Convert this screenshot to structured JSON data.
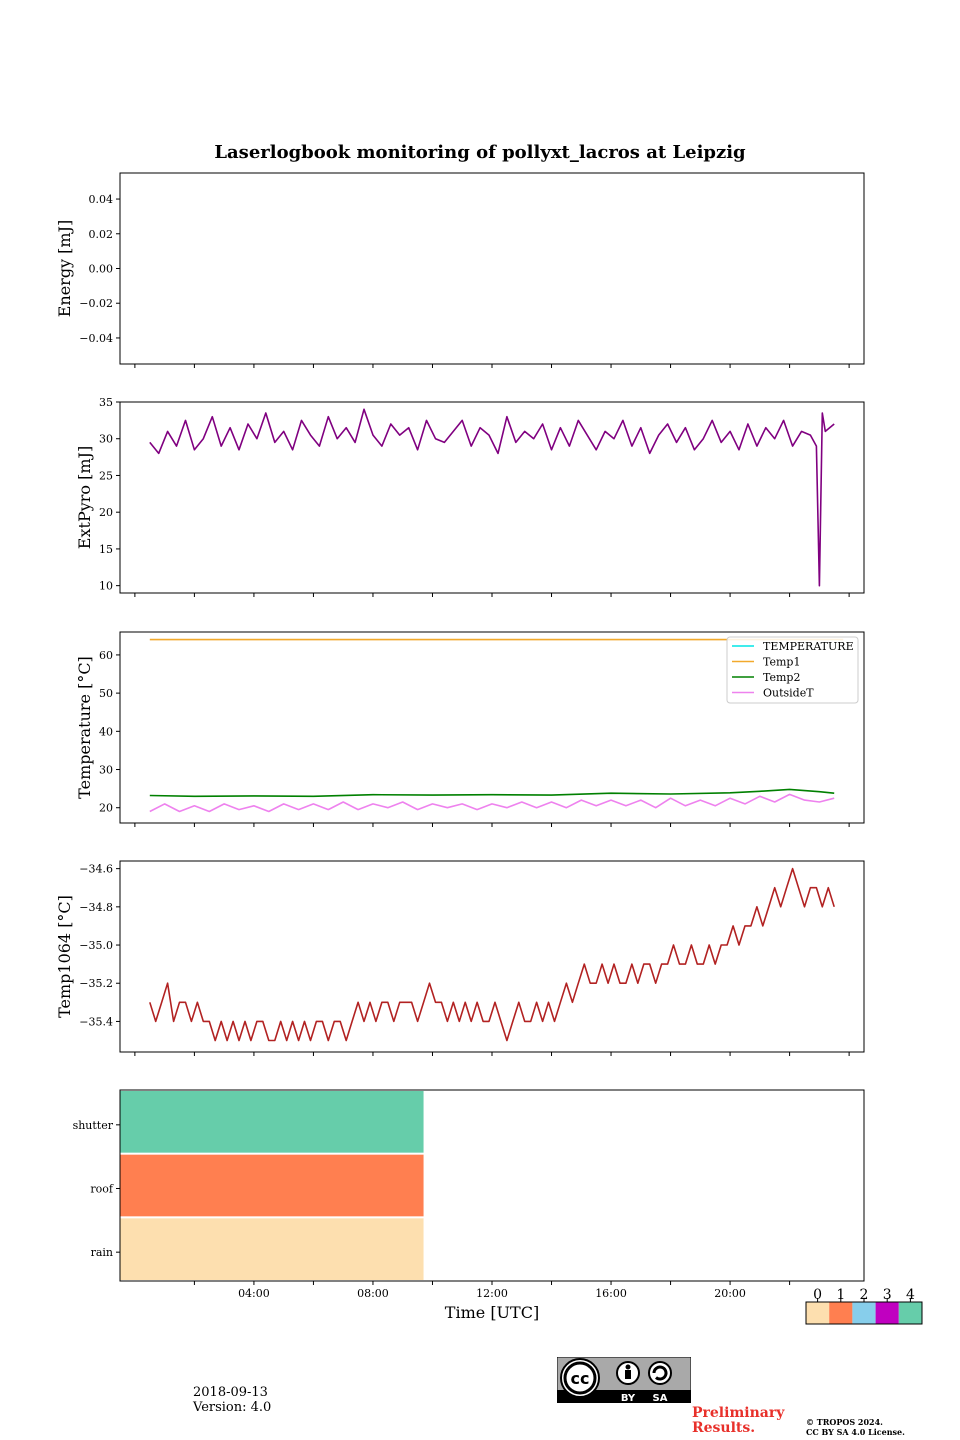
{
  "title": "Laserlogbook monitoring of pollyxt_lacros at Leipzig",
  "date": "2018-09-13",
  "version": "Version: 4.0",
  "preliminary": "Preliminary Results.",
  "copyright_line1": "© TROPOS 2024.",
  "copyright_line2": "CC BY SA 4.0 License.",
  "license_badge": {
    "cc": "cc",
    "by": "BY",
    "sa": "SA"
  },
  "x_axis": {
    "label": "Time [UTC]",
    "range_hours": [
      -0.5,
      24.5
    ],
    "ticks": [
      4,
      8,
      12,
      16,
      20
    ],
    "tick_labels": [
      "04:00",
      "08:00",
      "12:00",
      "16:00",
      "20:00"
    ],
    "minor_ticks": [
      2,
      6,
      10,
      14,
      18,
      22
    ]
  },
  "chart_data": [
    {
      "type": "line",
      "ylabel": "Energy [mJ]",
      "ylim": [
        -0.055,
        0.055
      ],
      "yticks": [
        0.04,
        0.02,
        0.0,
        -0.02,
        -0.04
      ],
      "ytick_labels": [
        "0.04",
        "0.02",
        "0.00",
        "−0.02",
        "−0.04"
      ],
      "series": []
    },
    {
      "type": "line",
      "ylabel": "ExtPyro [mJ]",
      "ylim": [
        9,
        35
      ],
      "yticks": [
        35,
        30,
        25,
        20,
        15,
        10
      ],
      "ytick_labels": [
        "35",
        "30",
        "25",
        "20",
        "15",
        "10"
      ],
      "series": [
        {
          "color": "#800080",
          "x": [
            0.5,
            0.8,
            1.1,
            1.4,
            1.7,
            2.0,
            2.3,
            2.6,
            2.9,
            3.2,
            3.5,
            3.8,
            4.1,
            4.4,
            4.7,
            5.0,
            5.3,
            5.6,
            5.9,
            6.2,
            6.5,
            6.8,
            7.1,
            7.4,
            7.7,
            8.0,
            8.3,
            8.6,
            8.9,
            9.2,
            9.5,
            9.8,
            10.1,
            10.4,
            10.7,
            11.0,
            11.3,
            11.6,
            11.9,
            12.2,
            12.5,
            12.8,
            13.1,
            13.4,
            13.7,
            14.0,
            14.3,
            14.6,
            14.9,
            15.2,
            15.5,
            15.8,
            16.1,
            16.4,
            16.7,
            17.0,
            17.3,
            17.6,
            17.9,
            18.2,
            18.5,
            18.8,
            19.1,
            19.4,
            19.7,
            20.0,
            20.3,
            20.6,
            20.9,
            21.2,
            21.5,
            21.8,
            22.1,
            22.4,
            22.7,
            22.9,
            23.0,
            23.1,
            23.2,
            23.5
          ],
          "y": [
            29.5,
            28.0,
            31.0,
            29.0,
            32.5,
            28.5,
            30.0,
            33.0,
            29.0,
            31.5,
            28.5,
            32.0,
            30.0,
            33.5,
            29.5,
            31.0,
            28.5,
            32.5,
            30.5,
            29.0,
            33.0,
            30.0,
            31.5,
            29.5,
            34.0,
            30.5,
            29.0,
            32.0,
            30.5,
            31.5,
            28.5,
            32.5,
            30.0,
            29.5,
            31.0,
            32.5,
            29.0,
            31.5,
            30.5,
            28.0,
            33.0,
            29.5,
            31.0,
            30.0,
            32.0,
            28.5,
            31.5,
            29.0,
            32.5,
            30.5,
            28.5,
            31.0,
            30.0,
            32.5,
            29.0,
            31.5,
            28.0,
            30.5,
            32.0,
            29.5,
            31.5,
            28.5,
            30.0,
            32.5,
            29.5,
            31.0,
            28.5,
            32.0,
            29.0,
            31.5,
            30.0,
            32.5,
            29.0,
            31.0,
            30.5,
            29.0,
            10.0,
            33.5,
            31.0,
            32.0
          ]
        }
      ]
    },
    {
      "type": "line",
      "ylabel": "Temperature [°C]",
      "ylim": [
        16,
        66
      ],
      "yticks": [
        60,
        50,
        40,
        30,
        20
      ],
      "ytick_labels": [
        "60",
        "50",
        "40",
        "30",
        "20"
      ],
      "legend": {
        "placement": "top-right",
        "entries": [
          "TEMPERATURE",
          "Temp1",
          "Temp2",
          "OutsideT"
        ]
      },
      "series": [
        {
          "name": "TEMPERATURE",
          "color": "#00e5e5",
          "x": [],
          "y": []
        },
        {
          "name": "Temp1",
          "color": "#f2a92c",
          "x": [
            0.5,
            23.8
          ],
          "y": [
            64,
            64
          ]
        },
        {
          "name": "Temp2",
          "color": "#008000",
          "x": [
            0.5,
            2,
            4,
            6,
            8,
            10,
            12,
            14,
            16,
            18,
            20,
            21,
            22,
            23,
            23.5
          ],
          "y": [
            23.2,
            23.0,
            23.1,
            23.0,
            23.4,
            23.3,
            23.4,
            23.3,
            23.8,
            23.6,
            23.9,
            24.3,
            24.8,
            24.2,
            23.8
          ]
        },
        {
          "name": "OutsideT",
          "color": "#ee82ee",
          "x": [
            0.5,
            1.0,
            1.5,
            2.0,
            2.5,
            3.0,
            3.5,
            4.0,
            4.5,
            5.0,
            5.5,
            6.0,
            6.5,
            7.0,
            7.5,
            8.0,
            8.5,
            9.0,
            9.5,
            10.0,
            10.5,
            11.0,
            11.5,
            12.0,
            12.5,
            13.0,
            13.5,
            14.0,
            14.5,
            15.0,
            15.5,
            16.0,
            16.5,
            17.0,
            17.5,
            18.0,
            18.5,
            19.0,
            19.5,
            20.0,
            20.5,
            21.0,
            21.5,
            22.0,
            22.5,
            23.0,
            23.5
          ],
          "y": [
            19,
            21,
            19,
            20.5,
            19,
            21,
            19.5,
            20.5,
            19,
            21,
            19.5,
            21,
            19.5,
            21.5,
            19.5,
            21,
            20,
            21.5,
            19.5,
            21,
            20,
            21,
            19.5,
            21,
            20,
            21.5,
            20,
            21.5,
            20,
            22,
            20.5,
            22,
            20.5,
            22,
            20,
            22.5,
            20.5,
            22,
            20.5,
            22.5,
            21,
            23,
            21.5,
            23.5,
            22,
            21.5,
            22.5
          ]
        }
      ]
    },
    {
      "type": "line",
      "ylabel": "Temp1064 [°C]",
      "ylim": [
        -35.56,
        -34.56
      ],
      "yticks": [
        -34.6,
        -34.8,
        -35.0,
        -35.2,
        -35.4
      ],
      "ytick_labels": [
        "−34.6",
        "−34.8",
        "−35.0",
        "−35.2",
        "−35.4"
      ],
      "series": [
        {
          "color": "#b22222",
          "x": [
            0.5,
            0.7,
            0.9,
            1.1,
            1.3,
            1.5,
            1.7,
            1.9,
            2.1,
            2.3,
            2.5,
            2.7,
            2.9,
            3.1,
            3.3,
            3.5,
            3.7,
            3.9,
            4.1,
            4.3,
            4.5,
            4.7,
            4.9,
            5.1,
            5.3,
            5.5,
            5.7,
            5.9,
            6.1,
            6.3,
            6.5,
            6.7,
            6.9,
            7.1,
            7.3,
            7.5,
            7.7,
            7.9,
            8.1,
            8.3,
            8.5,
            8.7,
            8.9,
            9.1,
            9.3,
            9.5,
            9.7,
            9.9,
            10.1,
            10.3,
            10.5,
            10.7,
            10.9,
            11.1,
            11.3,
            11.5,
            11.7,
            11.9,
            12.1,
            12.3,
            12.5,
            12.7,
            12.9,
            13.1,
            13.3,
            13.5,
            13.7,
            13.9,
            14.1,
            14.3,
            14.5,
            14.7,
            14.9,
            15.1,
            15.3,
            15.5,
            15.7,
            15.9,
            16.1,
            16.3,
            16.5,
            16.7,
            16.9,
            17.1,
            17.3,
            17.5,
            17.7,
            17.9,
            18.1,
            18.3,
            18.5,
            18.7,
            18.9,
            19.1,
            19.3,
            19.5,
            19.7,
            19.9,
            20.1,
            20.3,
            20.5,
            20.7,
            20.9,
            21.1,
            21.3,
            21.5,
            21.7,
            21.9,
            22.1,
            22.3,
            22.5,
            22.7,
            22.9,
            23.1,
            23.3,
            23.5
          ],
          "y": [
            -35.3,
            -35.4,
            -35.3,
            -35.2,
            -35.4,
            -35.3,
            -35.3,
            -35.4,
            -35.3,
            -35.4,
            -35.4,
            -35.5,
            -35.4,
            -35.5,
            -35.4,
            -35.5,
            -35.4,
            -35.5,
            -35.4,
            -35.4,
            -35.5,
            -35.5,
            -35.4,
            -35.5,
            -35.4,
            -35.5,
            -35.4,
            -35.5,
            -35.4,
            -35.4,
            -35.5,
            -35.4,
            -35.4,
            -35.5,
            -35.4,
            -35.3,
            -35.4,
            -35.3,
            -35.4,
            -35.3,
            -35.3,
            -35.4,
            -35.3,
            -35.3,
            -35.3,
            -35.4,
            -35.3,
            -35.2,
            -35.3,
            -35.3,
            -35.4,
            -35.3,
            -35.4,
            -35.3,
            -35.4,
            -35.3,
            -35.4,
            -35.4,
            -35.3,
            -35.4,
            -35.5,
            -35.4,
            -35.3,
            -35.4,
            -35.4,
            -35.3,
            -35.4,
            -35.3,
            -35.4,
            -35.3,
            -35.2,
            -35.3,
            -35.2,
            -35.1,
            -35.2,
            -35.2,
            -35.1,
            -35.2,
            -35.1,
            -35.2,
            -35.2,
            -35.1,
            -35.2,
            -35.1,
            -35.1,
            -35.2,
            -35.1,
            -35.1,
            -35.0,
            -35.1,
            -35.1,
            -35.0,
            -35.1,
            -35.1,
            -35.0,
            -35.1,
            -35.0,
            -35.0,
            -34.9,
            -35.0,
            -34.9,
            -34.9,
            -34.8,
            -34.9,
            -34.8,
            -34.7,
            -34.8,
            -34.7,
            -34.6,
            -34.7,
            -34.8,
            -34.7,
            -34.7,
            -34.8,
            -34.7,
            -34.8
          ]
        }
      ]
    },
    {
      "type": "heatmap",
      "rows": [
        "shutter",
        "roof",
        "rain"
      ],
      "blocks": [
        {
          "row": "shutter",
          "x_start": -0.5,
          "x_end": 9.7,
          "category": 4
        },
        {
          "row": "roof",
          "x_start": -0.5,
          "x_end": 9.7,
          "category": 1
        },
        {
          "row": "rain",
          "x_start": -0.5,
          "x_end": 9.7,
          "category": 0
        }
      ],
      "colorbar": {
        "ticks": [
          "0",
          "1",
          "2",
          "3",
          "4"
        ],
        "colors": [
          "#fddfaf",
          "#ff7f50",
          "#87ceeb",
          "#c000c0",
          "#66cdaa"
        ]
      }
    }
  ]
}
